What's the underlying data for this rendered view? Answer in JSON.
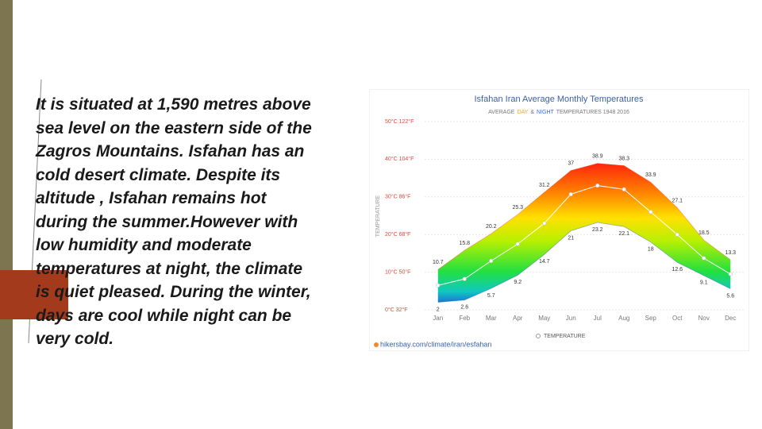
{
  "slide": {
    "paragraph": {
      "lines": [
        "It is situated at 1,590 metres above",
        "sea level on the eastern side of the",
        "Zagros Mountains. Isfahan has an",
        "cold desert climate. Despite its",
        "altitude , Isfahan remains hot",
        "during the summer.However with",
        "low humidity and moderate",
        "temperatures at night, the climate",
        "is quiet pleased. During the winter,",
        "days are cool while night can be",
        "very cold."
      ]
    }
  },
  "chart_data": {
    "type": "band",
    "title": "Isfahan Iran Average Monthly Temperatures",
    "subtitle": [
      "AVERAGE",
      "&",
      "TEMPERATURES 1948 2016"
    ],
    "y_label": "TEMPERATURE",
    "categories": [
      "Jan",
      "Feb",
      "Mar",
      "Apr",
      "May",
      "Jun",
      "Jul",
      "Aug",
      "Sep",
      "Oct",
      "Nov",
      "Dec"
    ],
    "series": [
      {
        "name": "DAY",
        "color": "#f5a623",
        "values": [
          10.7,
          15.8,
          20.2,
          25.3,
          31.2,
          37,
          38.9,
          38.3,
          33.9,
          27.1,
          18.5,
          13.3
        ]
      },
      {
        "name": "NIGHT",
        "color": "#2f6fd8",
        "values": [
          2,
          2.6,
          5.7,
          9.2,
          14.7,
          21,
          23.2,
          22.1,
          18,
          12.6,
          9.1,
          5.6
        ]
      },
      {
        "name": "TEMPERATURE",
        "color": "#ffffff",
        "values": [
          6.5,
          8.2,
          13,
          17.5,
          23,
          30.7,
          33,
          32,
          26,
          20,
          13.7,
          9.5
        ]
      }
    ],
    "ylim": [
      0,
      50
    ],
    "yticks": [
      {
        "value": 0,
        "label": "0°C 32°F"
      },
      {
        "value": 10,
        "label": "10°C 50°F"
      },
      {
        "value": 20,
        "label": "20°C 68°F"
      },
      {
        "value": 30,
        "label": "30°C 86°F"
      },
      {
        "value": 40,
        "label": "40°C 104°F"
      },
      {
        "value": 50,
        "label": "50°C 122°F"
      }
    ],
    "grid": true,
    "source": "hikersbay.com/climate/iran/esfahan"
  }
}
